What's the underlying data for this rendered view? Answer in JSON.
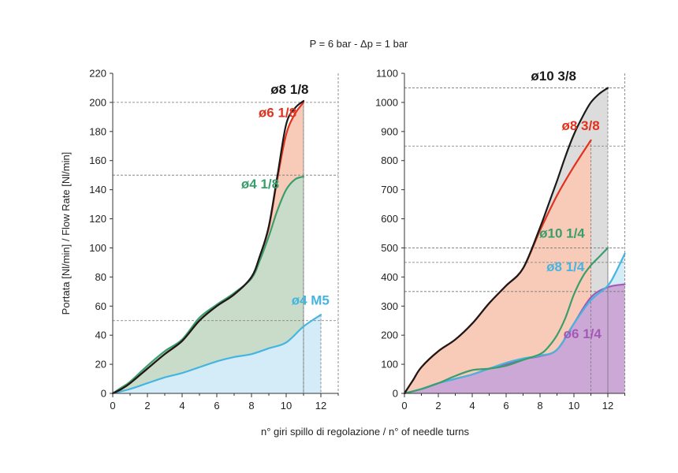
{
  "title": "P = 6 bar - Δp = 1 bar",
  "xlabel": "n° giri spillo di regolazione / n° of needle turns",
  "ylabel": "Portata [Nl/min] / Flow Rate [Nl/min]",
  "chart_data": [
    {
      "type": "area",
      "title": "",
      "xlabel": "n° giri spillo di regolazione / n° of needle turns",
      "ylabel": "Portata [Nl/min] / Flow Rate [Nl/min]",
      "xlim": [
        0,
        13
      ],
      "ylim": [
        0,
        220
      ],
      "xticks": [
        0,
        2,
        4,
        6,
        8,
        10,
        12
      ],
      "yticks": [
        0,
        20,
        40,
        60,
        80,
        100,
        120,
        140,
        160,
        180,
        200,
        220
      ],
      "grid": false,
      "legend": "none",
      "reference_lines": [
        200,
        150,
        50
      ],
      "series": [
        {
          "name": "ø8 1/8",
          "color": "#1a1a1a",
          "fill": "",
          "x": [
            0,
            0.5,
            1,
            2,
            3,
            4,
            5,
            6,
            7,
            8,
            8.5,
            9,
            9.5,
            10,
            10.5,
            11
          ],
          "y": [
            0,
            3,
            7,
            17,
            27,
            36,
            50,
            60,
            68,
            80,
            95,
            115,
            150,
            185,
            196,
            201
          ]
        },
        {
          "name": "ø6 1/8",
          "color": "#e2311d",
          "fill": "#f7cbb8",
          "x": [
            0,
            0.5,
            1,
            2,
            3,
            4,
            5,
            6,
            7,
            8,
            8.5,
            9,
            9.5,
            10,
            10.5,
            11
          ],
          "y": [
            0,
            3,
            7,
            17,
            27,
            36,
            50,
            60,
            68,
            80,
            95,
            114,
            148,
            178,
            192,
            200
          ]
        },
        {
          "name": "ø4 1/8",
          "color": "#3a9e6c",
          "fill": "#c9dcca",
          "x": [
            0,
            0.5,
            1,
            2,
            3,
            4,
            5,
            6,
            7,
            8,
            8.5,
            9,
            9.5,
            10,
            10.5,
            11
          ],
          "y": [
            0,
            4,
            8,
            19,
            29,
            37,
            52,
            61,
            69,
            79,
            92,
            108,
            126,
            140,
            147,
            149
          ]
        },
        {
          "name": "ø4 M5",
          "color": "#45b5e0",
          "fill": "#d3ecf8",
          "x": [
            0,
            1,
            2,
            3,
            4,
            5,
            6,
            7,
            8,
            9,
            10,
            11,
            12
          ],
          "y": [
            0,
            3,
            7,
            11,
            14,
            18,
            22,
            25,
            27,
            31,
            35,
            46,
            54
          ]
        }
      ],
      "labels": [
        {
          "text": "ø8 1/8",
          "color": "#1a1a1a",
          "x": 10.2,
          "y": 206
        },
        {
          "text": "ø6 1/8",
          "color": "#e2311d",
          "x": 9.5,
          "y": 190
        },
        {
          "text": "ø4 1/8",
          "color": "#3a9e6c",
          "x": 8.5,
          "y": 141
        },
        {
          "text": "ø4 M5",
          "color": "#45b5e0",
          "x": 11.4,
          "y": 61
        }
      ]
    },
    {
      "type": "area",
      "title": "",
      "xlabel": "n° giri spillo di regolazione / n° of needle turns",
      "ylabel": "",
      "xlim": [
        0,
        13
      ],
      "ylim": [
        0,
        1100
      ],
      "xticks": [
        0,
        2,
        4,
        6,
        8,
        10,
        12
      ],
      "yticks": [
        0,
        100,
        200,
        300,
        400,
        500,
        600,
        700,
        800,
        900,
        1000,
        1100
      ],
      "grid": false,
      "legend": "none",
      "reference_lines": [
        1050,
        850,
        500,
        450,
        350
      ],
      "series": [
        {
          "name": "ø10 3/8",
          "color": "#1a1a1a",
          "fill": "#dcdcdc",
          "x": [
            0,
            0.5,
            1,
            2,
            3,
            4,
            5,
            6,
            7,
            8,
            8.5,
            9,
            9.5,
            10,
            10.5,
            11,
            11.5,
            12
          ],
          "y": [
            0,
            45,
            90,
            145,
            185,
            240,
            310,
            370,
            430,
            570,
            650,
            730,
            815,
            890,
            950,
            1000,
            1030,
            1050
          ]
        },
        {
          "name": "ø8 3/8",
          "color": "#e2311d",
          "fill": "#f7cbb8",
          "x": [
            0,
            0.5,
            1,
            2,
            3,
            4,
            5,
            6,
            7,
            8,
            9,
            10,
            11
          ],
          "y": [
            0,
            45,
            90,
            145,
            185,
            240,
            310,
            370,
            430,
            560,
            680,
            780,
            870
          ]
        },
        {
          "name": "ø10 1/4",
          "color": "#3a9e6c",
          "fill": "",
          "x": [
            0,
            1,
            2,
            3,
            4,
            5,
            6,
            7,
            8,
            8.5,
            9,
            9.5,
            10,
            10.5,
            11,
            11.5,
            12
          ],
          "y": [
            0,
            15,
            35,
            60,
            80,
            85,
            95,
            115,
            135,
            160,
            200,
            260,
            340,
            400,
            440,
            470,
            500
          ]
        },
        {
          "name": "ø8 1/4",
          "color": "#45b5e0",
          "fill": "#d3ecf8",
          "x": [
            0,
            1,
            2,
            3,
            4,
            5,
            6,
            7,
            8,
            9,
            10,
            11,
            12,
            12.5,
            13
          ],
          "y": [
            0,
            15,
            35,
            50,
            65,
            85,
            105,
            120,
            130,
            150,
            240,
            320,
            370,
            420,
            480
          ]
        },
        {
          "name": "ø6 1/4",
          "color": "#a25bb5",
          "fill": "#cba8d6",
          "x": [
            0,
            1,
            2,
            3,
            4,
            5,
            6,
            7,
            8,
            9,
            10,
            11,
            12,
            13
          ],
          "y": [
            0,
            15,
            35,
            50,
            65,
            85,
            100,
            118,
            128,
            150,
            240,
            330,
            365,
            375
          ]
        }
      ],
      "labels": [
        {
          "text": "ø10 3/8",
          "color": "#1a1a1a",
          "x": 8.8,
          "y": 1075
        },
        {
          "text": "ø8 3/8",
          "color": "#e2311d",
          "x": 10.4,
          "y": 905
        },
        {
          "text": "ø10 1/4",
          "color": "#3a9e6c",
          "x": 9.3,
          "y": 535
        },
        {
          "text": "ø8 1/4",
          "color": "#45b5e0",
          "x": 9.5,
          "y": 420
        },
        {
          "text": "ø6 1/4",
          "color": "#a25bb5",
          "x": 10.5,
          "y": 190
        }
      ]
    }
  ]
}
